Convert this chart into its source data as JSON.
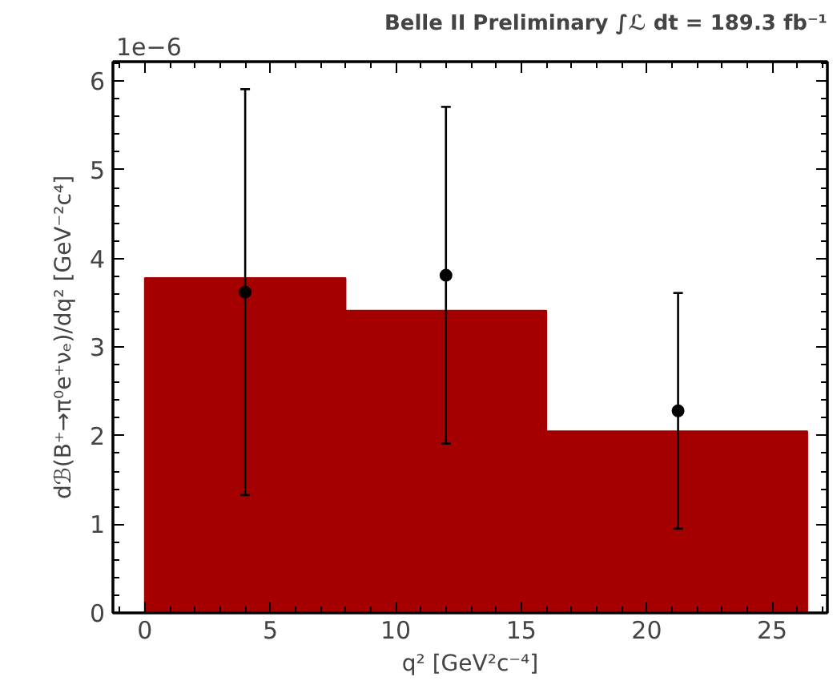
{
  "chart_data": {
    "type": "histogram",
    "title": "Belle II Preliminary ∫ℒ dt = 189.3 fb⁻¹",
    "xlabel": "q² [GeV²c⁻⁴]",
    "ylabel": "dℬ(B⁺→π⁰e⁺νₑ)/dq² [GeV⁻²c⁴]",
    "annotations": [
      "1e−6"
    ],
    "series": [
      {
        "bins": [
          0,
          8,
          16,
          26.4
        ],
        "values": [
          3.78,
          3.41,
          2.05
        ],
        "color": "#a50000"
      },
      {
        "type": "scatter",
        "x": [
          4.0,
          12.0,
          21.25
        ],
        "values": [
          3.62,
          3.81,
          2.28
        ],
        "errors": [
          [
            1.33,
            5.91
          ],
          [
            1.91,
            5.71
          ],
          [
            0.95,
            3.61
          ]
        ],
        "color": "#000000",
        "marker": "circle"
      }
    ],
    "xlim": [
      -1.27,
      27.2
    ],
    "ylim": [
      0,
      6.22
    ],
    "xticks": [
      0,
      5,
      10,
      15,
      20,
      25
    ],
    "yticks": [
      0,
      1,
      2,
      3,
      4,
      5,
      6
    ],
    "grid": false
  }
}
